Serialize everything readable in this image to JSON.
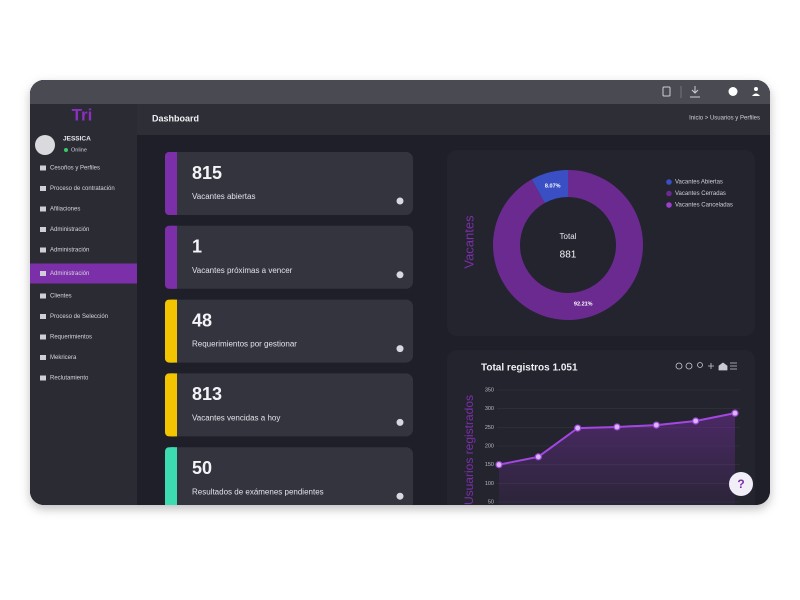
{
  "sidebar": {
    "logo": "Tri",
    "user": "JESSICA",
    "status": "Online",
    "menu": [
      "Cesoños y Perfiles",
      "Proceso de contratación",
      "Afiliaciones",
      "Administración",
      "Administración",
      "Administración",
      "Clientes",
      "Proceso de Selección",
      "Requerimientos",
      "Mekricera",
      "Reclutamiento"
    ],
    "active_index": 5
  },
  "header": {
    "title": "Dashboard",
    "breadcrumb": "Inicio > Usuarios y Perfiles"
  },
  "cards": [
    {
      "value": 815,
      "label": "Vacantes abiertas",
      "color": "#7b2fa8"
    },
    {
      "value": 1,
      "label": "Vacantes próximas a vencer",
      "color": "#7b2fa8"
    },
    {
      "value": 48,
      "label": "Requerimientos por gestionar",
      "color": "#f2c500"
    },
    {
      "value": 813,
      "label": "Vacantes vencidas a hoy",
      "color": "#f2c500"
    },
    {
      "value": 50,
      "label": "Resultados de exámenes pendientes",
      "color": "#3ddbb0"
    }
  ],
  "donut_chart": {
    "type": "pie",
    "axis_label": "Vacantes",
    "center_label": "Total",
    "center_value": 881,
    "categories": [
      "Vacantes Abiertas",
      "Vacantes Cerradas",
      "Vacantes Canceladas"
    ],
    "values": [
      8.07,
      92.21,
      0
    ],
    "value_labels": [
      "8.07%",
      "92.21%",
      null
    ],
    "colors": [
      "#3a4fc4",
      "#6a2a90",
      "#9b3fd0"
    ]
  },
  "line_chart": {
    "type": "line",
    "title": "Total registros 1.051",
    "y_label": "Usuarios registrados",
    "values": [
      150,
      171,
      248,
      251,
      256,
      267,
      288
    ],
    "ylim": [
      50,
      350
    ],
    "yticks": [
      50,
      100,
      150,
      200,
      250,
      300,
      350
    ],
    "color": "#a347e0"
  }
}
